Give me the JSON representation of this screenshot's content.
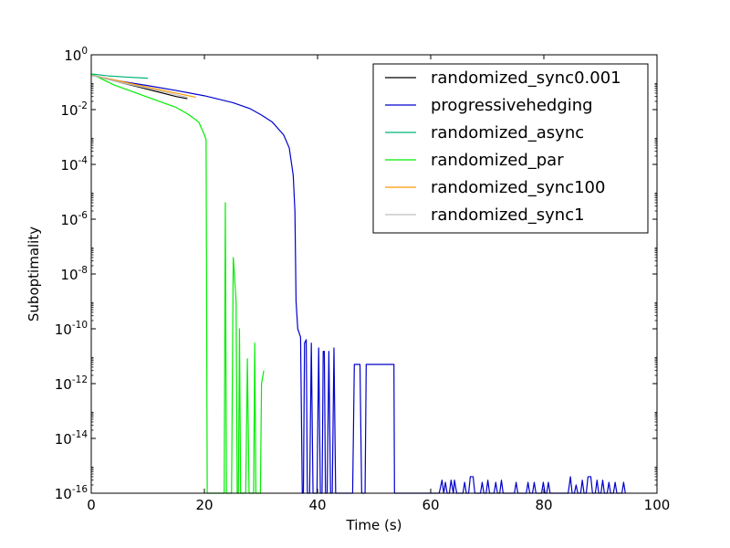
{
  "chart_data": {
    "type": "line",
    "title": "",
    "xlabel": "Time (s)",
    "ylabel": "Suboptimality",
    "xlim": [
      0,
      100
    ],
    "ylim": [
      1e-16,
      1
    ],
    "y_scale": "log",
    "grid": false,
    "legend_position": "top-right",
    "x_ticks": [
      {
        "value": 0,
        "label": "0"
      },
      {
        "value": 20,
        "label": "20"
      },
      {
        "value": 40,
        "label": "40"
      },
      {
        "value": 60,
        "label": "60"
      },
      {
        "value": 80,
        "label": "80"
      },
      {
        "value": 100,
        "label": "100"
      }
    ],
    "y_ticks": [
      {
        "value": 1,
        "base": "10",
        "exp": "0"
      },
      {
        "value": 0.01,
        "base": "10",
        "exp": "-2"
      },
      {
        "value": 0.0001,
        "base": "10",
        "exp": "-4"
      },
      {
        "value": 1e-06,
        "base": "10",
        "exp": "-6"
      },
      {
        "value": 1e-08,
        "base": "10",
        "exp": "-8"
      },
      {
        "value": 1e-10,
        "base": "10",
        "exp": "-10"
      },
      {
        "value": 1e-12,
        "base": "10",
        "exp": "-12"
      },
      {
        "value": 1e-14,
        "base": "10",
        "exp": "-14"
      },
      {
        "value": 1e-16,
        "base": "10",
        "exp": "-16"
      }
    ],
    "series": [
      {
        "name": "randomized_sync0.001",
        "color": "#000000",
        "points": [
          [
            0,
            0.18
          ],
          [
            5,
            0.1
          ],
          [
            10,
            0.055
          ],
          [
            15,
            0.03
          ],
          [
            17,
            0.025
          ]
        ]
      },
      {
        "name": "progressivehedging",
        "color": "#0000cc",
        "points": [
          [
            0,
            0.18
          ],
          [
            5,
            0.11
          ],
          [
            10,
            0.075
          ],
          [
            15,
            0.05
          ],
          [
            20,
            0.032
          ],
          [
            25,
            0.018
          ],
          [
            28,
            0.011
          ],
          [
            30,
            0.0065
          ],
          [
            32,
            0.0035
          ],
          [
            34,
            0.0012
          ],
          [
            35,
            0.0004
          ],
          [
            35.7,
            4e-05
          ],
          [
            36,
            2e-06
          ],
          [
            36.2,
            1e-09
          ],
          [
            36.5,
            1e-10
          ],
          [
            37,
            5e-11
          ],
          [
            37.3,
            1e-16
          ],
          [
            37.5,
            1e-16
          ],
          [
            37.7,
            3e-11
          ],
          [
            38,
            4e-11
          ],
          [
            38.2,
            1e-16
          ],
          [
            38.6,
            1e-16
          ],
          [
            38.9,
            3e-11
          ],
          [
            39.2,
            1e-16
          ],
          [
            39.9,
            1e-16
          ],
          [
            40.2,
            2e-11
          ],
          [
            40.5,
            1e-16
          ],
          [
            40.8,
            1e-16
          ],
          [
            41.0,
            1.5e-11
          ],
          [
            41.2,
            1.5e-11
          ],
          [
            41.4,
            1e-16
          ],
          [
            41.7,
            1e-16
          ],
          [
            42,
            1.5e-11
          ],
          [
            42.3,
            1e-16
          ],
          [
            42.6,
            1e-16
          ],
          [
            42.9,
            2e-11
          ],
          [
            43.2,
            1e-16
          ],
          [
            46.2,
            1e-16
          ],
          [
            46.5,
            5e-12
          ],
          [
            47.5,
            5e-12
          ],
          [
            47.8,
            1e-16
          ],
          [
            48.4,
            1e-16
          ],
          [
            48.6,
            5e-12
          ],
          [
            53.5,
            5e-12
          ],
          [
            53.6,
            1e-16
          ],
          [
            61.5,
            1e-16
          ],
          [
            62,
            3e-16
          ],
          [
            62.3,
            1e-16
          ],
          [
            62.6,
            2.5e-16
          ],
          [
            62.9,
            1e-16
          ],
          [
            63.3,
            1e-16
          ],
          [
            63.6,
            3e-16
          ],
          [
            64,
            1e-16
          ],
          [
            64.2,
            3e-16
          ],
          [
            64.6,
            1e-16
          ],
          [
            65.7,
            1e-16
          ],
          [
            66,
            2.5e-16
          ],
          [
            66.3,
            1e-16
          ],
          [
            66.7,
            1e-16
          ],
          [
            67,
            4e-16
          ],
          [
            67.5,
            4e-16
          ],
          [
            67.8,
            1e-16
          ],
          [
            68.8,
            1e-16
          ],
          [
            69.1,
            2.5e-16
          ],
          [
            69.4,
            1e-16
          ],
          [
            69.8,
            1e-16
          ],
          [
            70.1,
            3e-16
          ],
          [
            70.4,
            1e-16
          ],
          [
            71.2,
            1e-16
          ],
          [
            71.5,
            2.5e-16
          ],
          [
            71.8,
            1e-16
          ],
          [
            72.2,
            1e-16
          ],
          [
            72.5,
            3e-16
          ],
          [
            72.8,
            1e-16
          ],
          [
            74.8,
            1e-16
          ],
          [
            75.1,
            2.5e-16
          ],
          [
            75.4,
            1e-16
          ],
          [
            76.9,
            1e-16
          ],
          [
            77.2,
            2.5e-16
          ],
          [
            77.5,
            1e-16
          ],
          [
            78,
            1e-16
          ],
          [
            78.3,
            2.5e-16
          ],
          [
            78.6,
            1e-16
          ],
          [
            79.6,
            1e-16
          ],
          [
            79.9,
            2.5e-16
          ],
          [
            80.2,
            1e-16
          ],
          [
            80.5,
            1e-16
          ],
          [
            80.8,
            2.5e-16
          ],
          [
            81.1,
            1e-16
          ],
          [
            84.3,
            1e-16
          ],
          [
            84.7,
            4e-16
          ],
          [
            85,
            1e-16
          ],
          [
            85.4,
            1e-16
          ],
          [
            85.7,
            2e-16
          ],
          [
            86,
            1e-16
          ],
          [
            86.5,
            1e-16
          ],
          [
            86.8,
            3e-16
          ],
          [
            87.1,
            1e-16
          ],
          [
            87.5,
            1e-16
          ],
          [
            87.8,
            4e-16
          ],
          [
            88.3,
            4e-16
          ],
          [
            88.6,
            1e-16
          ],
          [
            89.1,
            1e-16
          ],
          [
            89.4,
            3e-16
          ],
          [
            89.7,
            1e-16
          ],
          [
            90.1,
            1e-16
          ],
          [
            90.4,
            3e-16
          ],
          [
            90.7,
            1e-16
          ],
          [
            91.2,
            1e-16
          ],
          [
            91.5,
            2.5e-16
          ],
          [
            91.8,
            1e-16
          ],
          [
            92.3,
            1e-16
          ],
          [
            92.6,
            2.5e-16
          ],
          [
            92.9,
            1e-16
          ],
          [
            93.8,
            1e-16
          ],
          [
            94.1,
            2.5e-16
          ],
          [
            94.4,
            1e-16
          ]
        ]
      },
      {
        "name": "randomized_async",
        "color": "#00b377",
        "points": [
          [
            0,
            0.2
          ],
          [
            3,
            0.17
          ],
          [
            6,
            0.155
          ],
          [
            10,
            0.14
          ]
        ]
      },
      {
        "name": "randomized_par",
        "color": "#00ee00",
        "points": [
          [
            0,
            0.2
          ],
          [
            4,
            0.08
          ],
          [
            8,
            0.04
          ],
          [
            12,
            0.02
          ],
          [
            15,
            0.012
          ],
          [
            17,
            0.007
          ],
          [
            18,
            0.005
          ],
          [
            19,
            0.0035
          ],
          [
            20,
            0.0012
          ],
          [
            20.3,
            0.0008
          ],
          [
            20.5,
            1e-16
          ],
          [
            23.5,
            1e-16
          ],
          [
            23.7,
            4e-06
          ],
          [
            23.9,
            1e-16
          ],
          [
            24.8,
            1e-16
          ],
          [
            25.1,
            4e-08
          ],
          [
            25.3,
            1e-08
          ],
          [
            25.6,
            1e-09
          ],
          [
            25.8,
            1e-16
          ],
          [
            26,
            1e-16
          ],
          [
            26.2,
            1e-10
          ],
          [
            26.4,
            1e-16
          ],
          [
            27.3,
            1e-16
          ],
          [
            27.6,
            8e-12
          ],
          [
            27.9,
            1e-16
          ],
          [
            28.7,
            1e-16
          ],
          [
            28.9,
            3e-11
          ],
          [
            29.1,
            1e-16
          ],
          [
            29.9,
            1e-16
          ],
          [
            30.1,
            1e-12
          ],
          [
            30.5,
            3e-12
          ]
        ]
      },
      {
        "name": "randomized_sync100",
        "color": "#ff9900",
        "points": [
          [
            0,
            0.18
          ],
          [
            5,
            0.11
          ],
          [
            10,
            0.065
          ],
          [
            15,
            0.04
          ],
          [
            18.5,
            0.028
          ]
        ]
      },
      {
        "name": "randomized_sync1",
        "color": "#bfbfbf",
        "points": [
          [
            0,
            0.18
          ],
          [
            5,
            0.1
          ],
          [
            10,
            0.06
          ],
          [
            15,
            0.035
          ],
          [
            17,
            0.028
          ]
        ]
      }
    ]
  }
}
